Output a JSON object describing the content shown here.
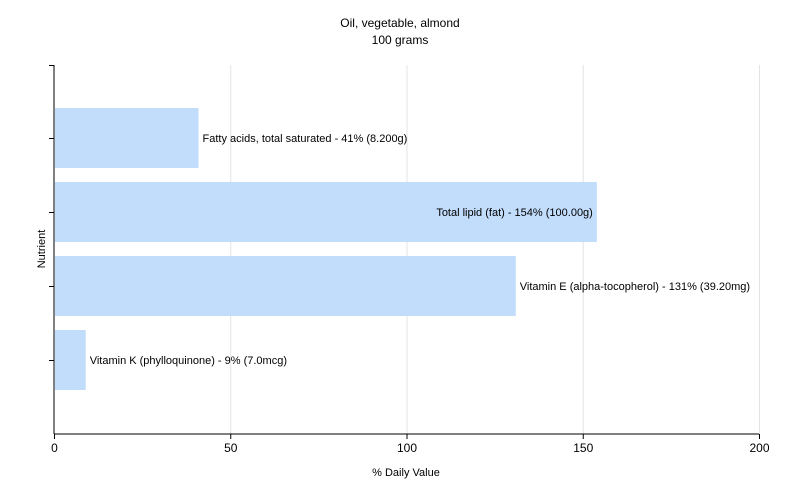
{
  "chart_data": {
    "type": "bar",
    "orientation": "horizontal",
    "title": "Oil, vegetable, almond",
    "subtitle": "100 grams",
    "xlabel": "% Daily Value",
    "ylabel": "Nutrient",
    "xlim": [
      0,
      200
    ],
    "xticks": [
      0,
      50,
      100,
      150,
      200
    ],
    "grid": true,
    "bar_color": "#c2dcfb",
    "categories": [
      "Fatty acids, total saturated",
      "Total lipid (fat)",
      "Vitamin E (alpha-tocopherol)",
      "Vitamin K (phylloquinone)"
    ],
    "values": [
      41,
      154,
      131,
      9
    ],
    "bar_labels": [
      "Fatty acids, total saturated - 41% (8.200g)",
      "Total lipid (fat) - 154% (100.00g)",
      "Vitamin E (alpha-tocopherol) - 131% (39.20mg)",
      "Vitamin K (phylloquinone) - 9% (7.0mcg)"
    ]
  }
}
